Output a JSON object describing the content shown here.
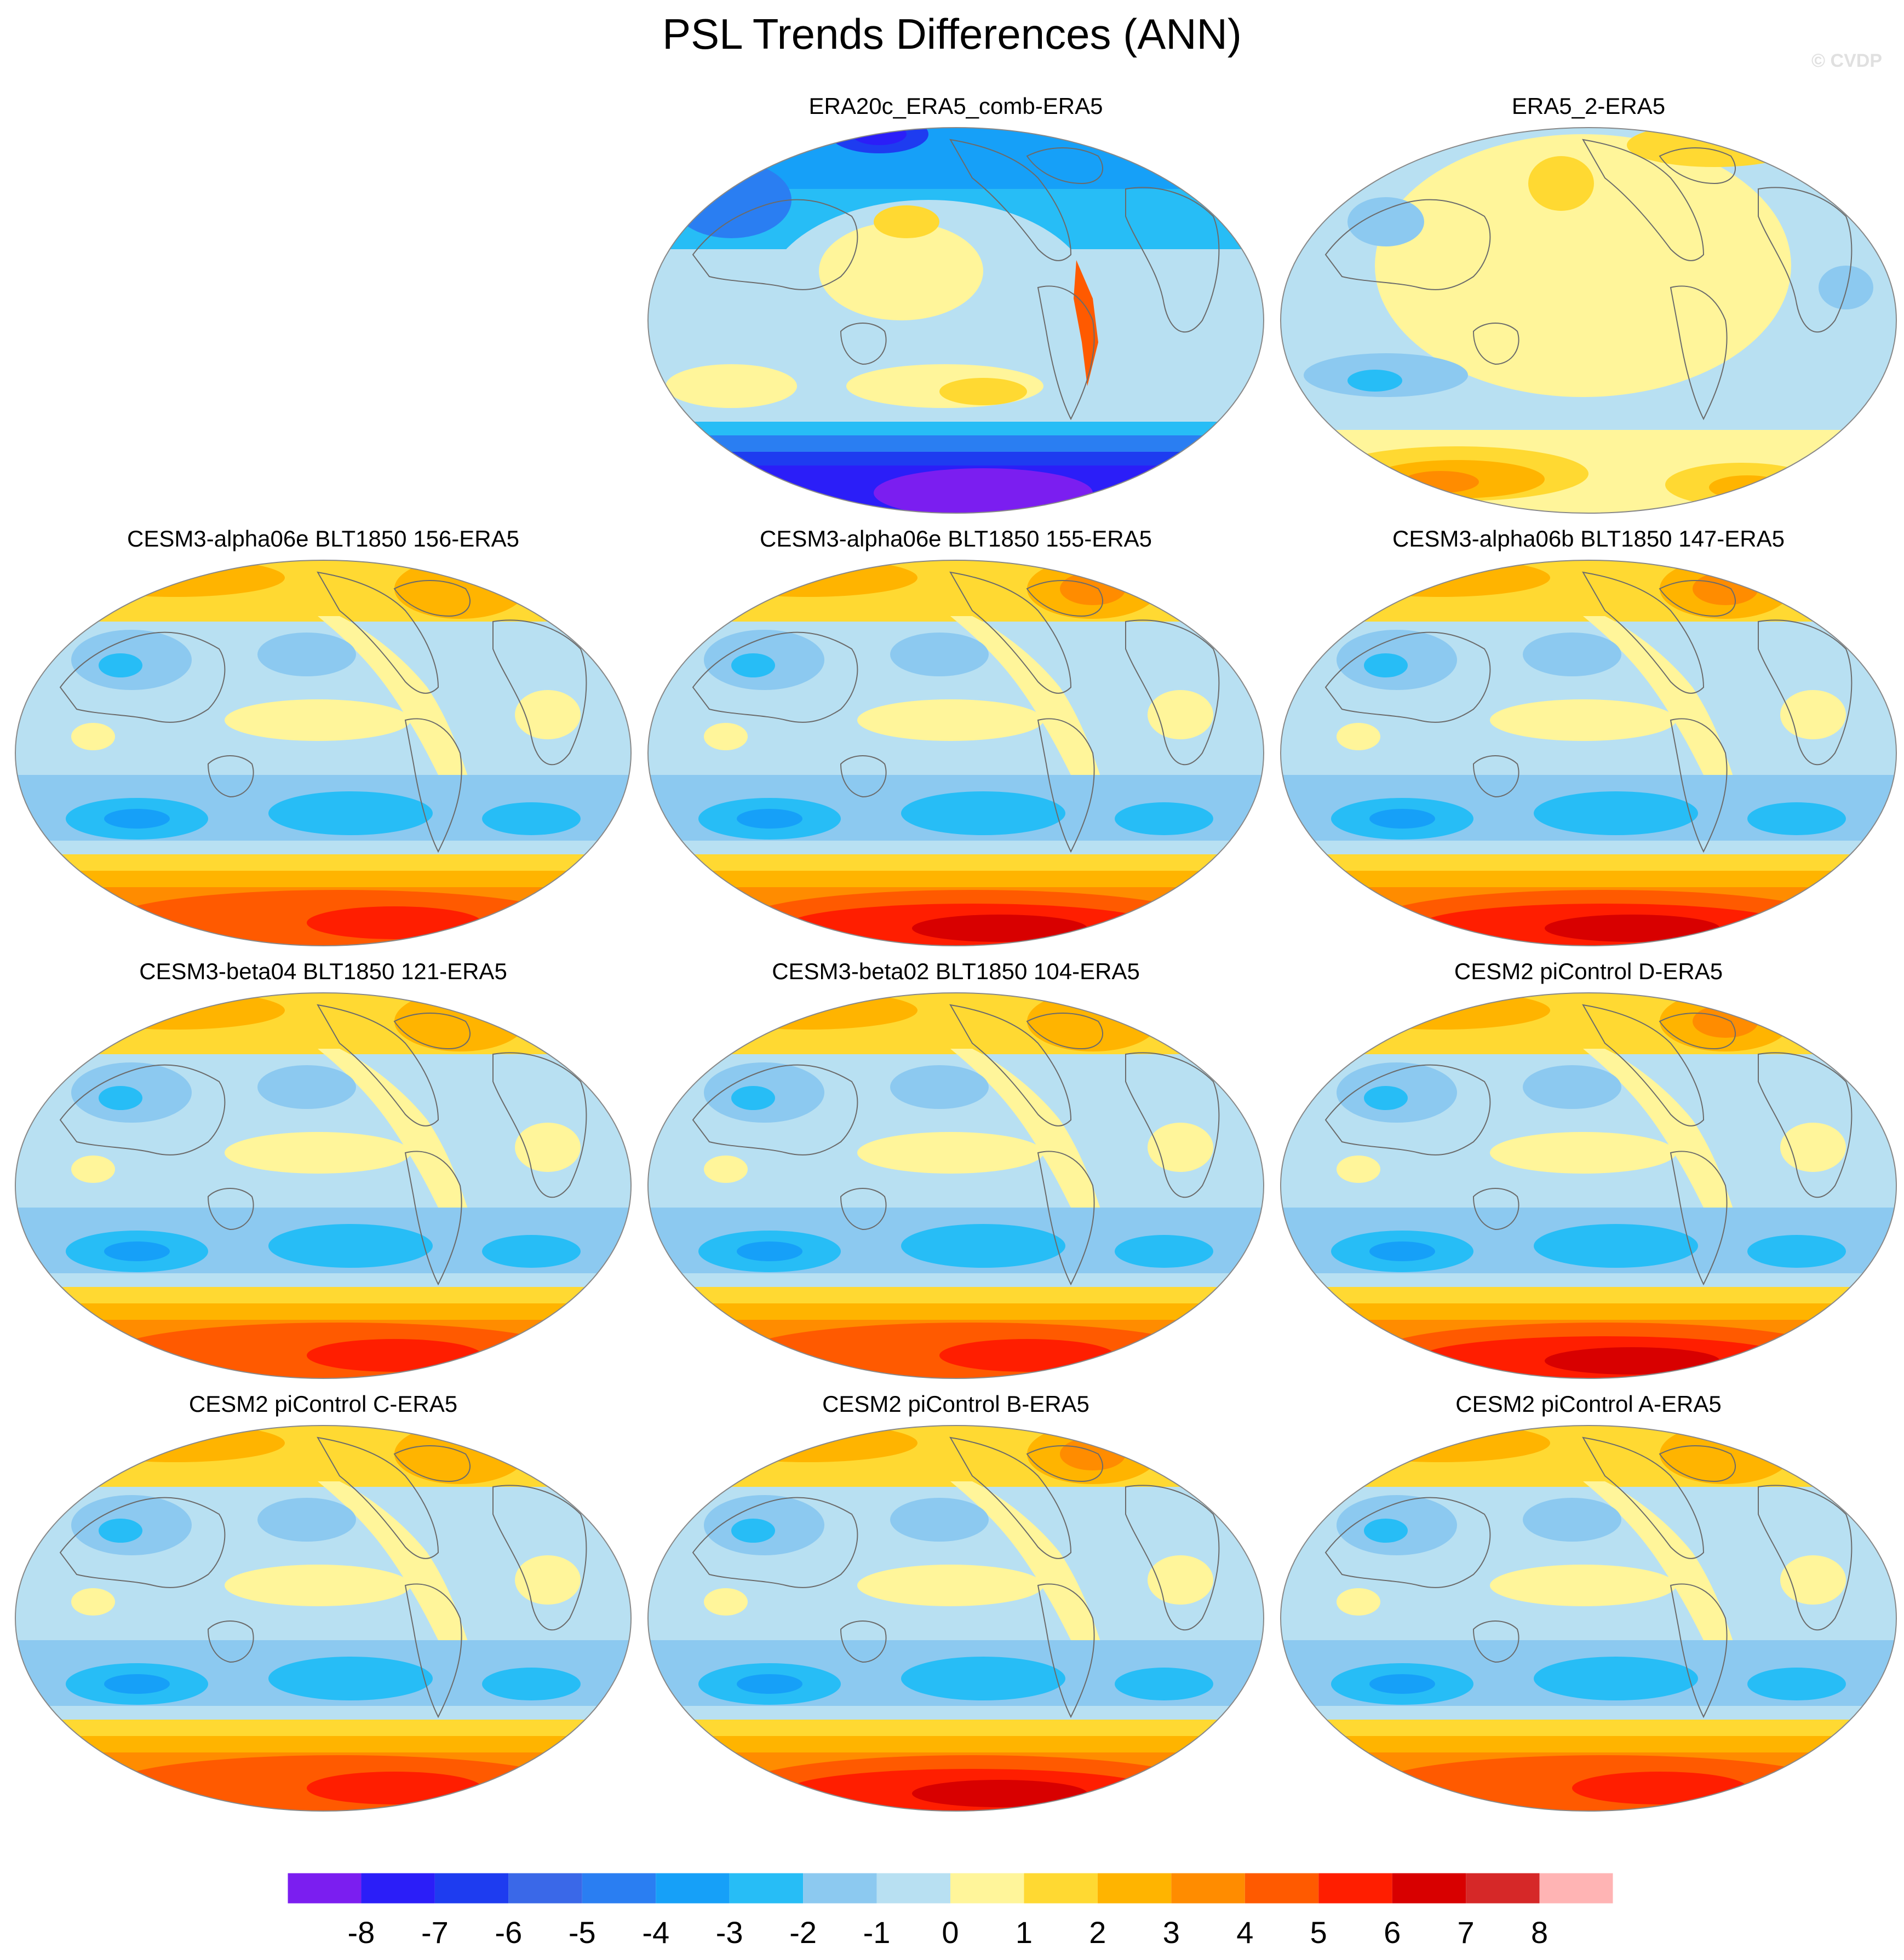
{
  "title": "PSL Trends Differences (ANN)",
  "watermark": "© CVDP",
  "panels": [
    {
      "id": "p1",
      "title": "ERA20c_ERA5_comb-ERA5",
      "col": 1,
      "row": 0,
      "style": "era20c"
    },
    {
      "id": "p2",
      "title": "ERA5_2-ERA5",
      "col": 2,
      "row": 0,
      "style": "era5"
    },
    {
      "id": "p3",
      "title": "CESM3-alpha06e BLT1850 156-ERA5",
      "col": 0,
      "row": 1,
      "style": "model"
    },
    {
      "id": "p4",
      "title": "CESM3-alpha06e BLT1850 155-ERA5",
      "col": 1,
      "row": 1,
      "style": "model_strong"
    },
    {
      "id": "p5",
      "title": "CESM3-alpha06b BLT1850 147-ERA5",
      "col": 2,
      "row": 1,
      "style": "model_strong"
    },
    {
      "id": "p6",
      "title": "CESM3-beta04 BLT1850 121-ERA5",
      "col": 0,
      "row": 2,
      "style": "model"
    },
    {
      "id": "p7",
      "title": "CESM3-beta02 BLT1850 104-ERA5",
      "col": 1,
      "row": 2,
      "style": "model"
    },
    {
      "id": "p8",
      "title": "CESM2 piControl D-ERA5",
      "col": 2,
      "row": 2,
      "style": "model_strong"
    },
    {
      "id": "p9",
      "title": "CESM2 piControl C-ERA5",
      "col": 0,
      "row": 3,
      "style": "model"
    },
    {
      "id": "p10",
      "title": "CESM2 piControl B-ERA5",
      "col": 1,
      "row": 3,
      "style": "model_strong"
    },
    {
      "id": "p11",
      "title": "CESM2 piControl A-ERA5",
      "col": 2,
      "row": 3,
      "style": "model"
    }
  ],
  "colorbar": {
    "tick_labels": [
      "-8",
      "-7",
      "-6",
      "-5",
      "-4",
      "-3",
      "-2",
      "-1",
      "0",
      "1",
      "2",
      "3",
      "4",
      "5",
      "6",
      "7",
      "8"
    ],
    "colors": [
      "#7b1ef0",
      "#2b1ef8",
      "#1e3cf0",
      "#3a68e8",
      "#2a7ef2",
      "#16a0f8",
      "#27bdf6",
      "#8cc9f0",
      "#b8e0f2",
      "#fff59a",
      "#ffd932",
      "#ffb400",
      "#ff8c00",
      "#ff5a00",
      "#ff1e00",
      "#d80000",
      "#d62828",
      "#ffb4b4"
    ]
  }
}
